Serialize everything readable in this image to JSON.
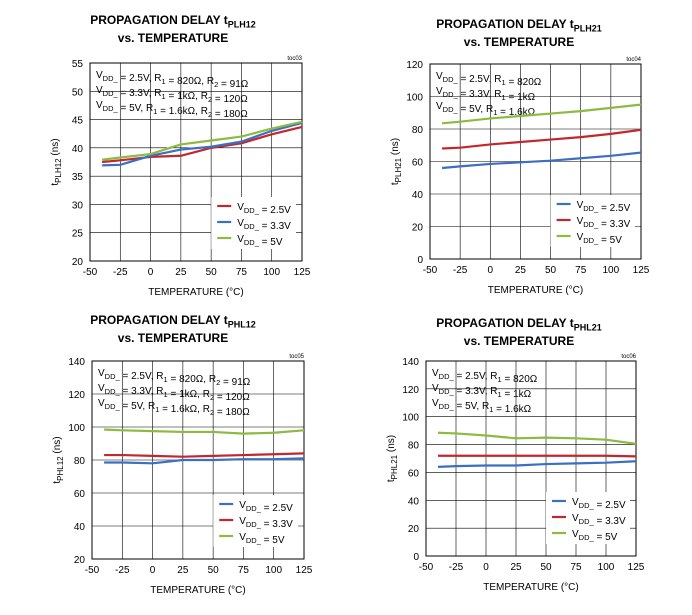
{
  "chart_data": [
    {
      "type": "line",
      "title_main": "PROPAGATION DELAY t",
      "title_sub": "PLH12",
      "title_line2": "vs. TEMPERATURE",
      "tag": "toc03",
      "xlabel": "TEMPERATURE (°C)",
      "ylabel_main": "t",
      "ylabel_sub": "PLH12",
      "ylabel_unit": " (ns)",
      "xlim": [
        -50,
        125
      ],
      "ylim": [
        20,
        55
      ],
      "xticks": [
        -50,
        -25,
        0,
        25,
        50,
        75,
        100,
        125
      ],
      "yticks": [
        20,
        25,
        30,
        35,
        40,
        45,
        50,
        55
      ],
      "conditions": [
        "VDD_ = 2.5V, R1 = 820Ω, R2 = 91Ω",
        "VDD_ = 3.3V, R1 = 1kΩ, R2 = 120Ω",
        "VDD_ = 5V, R1 = 1.6kΩ, R2 = 180Ω"
      ],
      "legend_position": "lower-right",
      "grid": true,
      "x": [
        -40,
        -25,
        0,
        25,
        50,
        75,
        100,
        125
      ],
      "series": [
        {
          "name": "VDD_ = 2.5V",
          "color": "#c3272e",
          "values": [
            37.5,
            37.8,
            38.4,
            38.6,
            40.0,
            40.8,
            42.4,
            43.7
          ]
        },
        {
          "name": "VDD_ = 3.3V",
          "color": "#3b6fc1",
          "values": [
            36.9,
            37.0,
            38.6,
            39.7,
            40.2,
            41.1,
            43.0,
            44.4
          ]
        },
        {
          "name": "VDD_ = 5V",
          "color": "#8dba3f",
          "values": [
            37.9,
            38.3,
            38.9,
            40.6,
            41.3,
            42.0,
            43.4,
            44.6
          ]
        }
      ]
    },
    {
      "type": "line",
      "title_main": "PROPAGATION DELAY t",
      "title_sub": "PLH21",
      "title_line2": "vs. TEMPERATURE",
      "tag": "toc04",
      "xlabel": "TEMPERATURE (°C)",
      "ylabel_main": "t",
      "ylabel_sub": "PLH21",
      "ylabel_unit": " (ns)",
      "xlim": [
        -50,
        125
      ],
      "ylim": [
        0,
        120
      ],
      "xticks": [
        -50,
        -25,
        0,
        25,
        50,
        75,
        100,
        125
      ],
      "yticks": [
        0,
        20,
        40,
        60,
        80,
        100,
        120
      ],
      "conditions": [
        "VDD_ = 2.5V, R1 = 820Ω",
        "VDD_ = 3.3V, R1 = 1kΩ",
        "VDD_ = 5V, R1 = 1.6kΩ"
      ],
      "legend_position": "lower-right",
      "grid": true,
      "x": [
        -40,
        -25,
        0,
        25,
        50,
        75,
        100,
        125
      ],
      "series": [
        {
          "name": "VDD_ = 2.5V",
          "color": "#3b6fc1",
          "values": [
            56,
            57,
            58.5,
            59.5,
            60.5,
            62,
            63.5,
            65.5
          ]
        },
        {
          "name": "VDD_ = 3.3V",
          "color": "#c3272e",
          "values": [
            68,
            68.5,
            70.5,
            72,
            73.5,
            75,
            77,
            79.5
          ]
        },
        {
          "name": "VDD_ = 5V",
          "color": "#8dba3f",
          "values": [
            83.5,
            84.5,
            86.5,
            88,
            89.5,
            91,
            93,
            95
          ]
        }
      ]
    },
    {
      "type": "line",
      "title_main": "PROPAGATION DELAY t",
      "title_sub": "PHL12",
      "title_line2": "vs. TEMPERATURE",
      "tag": "toc05",
      "xlabel": "TEMPERATURE (°C)",
      "ylabel_main": "t",
      "ylabel_sub": "PHL12",
      "ylabel_unit": " (ns)",
      "xlim": [
        -50,
        125
      ],
      "ylim": [
        20,
        140
      ],
      "xticks": [
        -50,
        -25,
        0,
        25,
        50,
        75,
        100,
        125
      ],
      "yticks": [
        20,
        40,
        60,
        80,
        100,
        120,
        140
      ],
      "conditions": [
        "VDD_ = 2.5V, R1 = 820Ω, R2 = 91Ω",
        "VDD_ = 3.3V, R1 = 1kΩ, R2 = 120Ω",
        "VDD_ = 5V, R1 = 1.6kΩ, R2 = 180Ω"
      ],
      "legend_position": "lower-right",
      "grid": true,
      "x": [
        -40,
        -25,
        0,
        25,
        50,
        75,
        100,
        125
      ],
      "series": [
        {
          "name": "VDD_ = 2.5V",
          "color": "#3b6fc1",
          "values": [
            78.5,
            78.5,
            78,
            80,
            80,
            80.5,
            80.5,
            81
          ]
        },
        {
          "name": "VDD_ = 3.3V",
          "color": "#c3272e",
          "values": [
            83,
            83,
            82.5,
            82,
            82.5,
            83,
            83.5,
            84
          ]
        },
        {
          "name": "VDD_ = 5V",
          "color": "#8dba3f",
          "values": [
            98.5,
            98,
            97.5,
            97,
            97,
            96,
            96.5,
            98
          ]
        }
      ]
    },
    {
      "type": "line",
      "title_main": "PROPAGATION DELAY t",
      "title_sub": "PHL21",
      "title_line2": "vs. TEMPERATURE",
      "tag": "toc06",
      "xlabel": "TEMPERATURE (°C)",
      "ylabel_main": "t",
      "ylabel_sub": "PHL21",
      "ylabel_unit": " (ns)",
      "xlim": [
        -50,
        125
      ],
      "ylim": [
        0,
        140
      ],
      "xticks": [
        -50,
        -25,
        0,
        25,
        50,
        75,
        100,
        125
      ],
      "yticks": [
        0,
        20,
        40,
        60,
        80,
        100,
        120,
        140
      ],
      "conditions": [
        "VDD_ = 2.5V, R1 = 820Ω",
        "VDD_ = 3.3V, R1 = 1kΩ",
        "VDD_ = 5V, R1 = 1.6kΩ"
      ],
      "legend_position": "lower-right",
      "grid": true,
      "x": [
        -40,
        -25,
        0,
        25,
        50,
        75,
        100,
        125
      ],
      "series": [
        {
          "name": "VDD_ = 2.5V",
          "color": "#3b6fc1",
          "values": [
            64,
            64.5,
            65,
            65,
            66,
            66.5,
            67,
            68
          ]
        },
        {
          "name": "VDD_ = 3.3V",
          "color": "#c3272e",
          "values": [
            72,
            72,
            72,
            72,
            72,
            72,
            72,
            71.5
          ]
        },
        {
          "name": "VDD_ = 5V",
          "color": "#8dba3f",
          "values": [
            88.5,
            88,
            86.5,
            84.5,
            85,
            84.5,
            83.5,
            80.5
          ]
        }
      ]
    }
  ]
}
